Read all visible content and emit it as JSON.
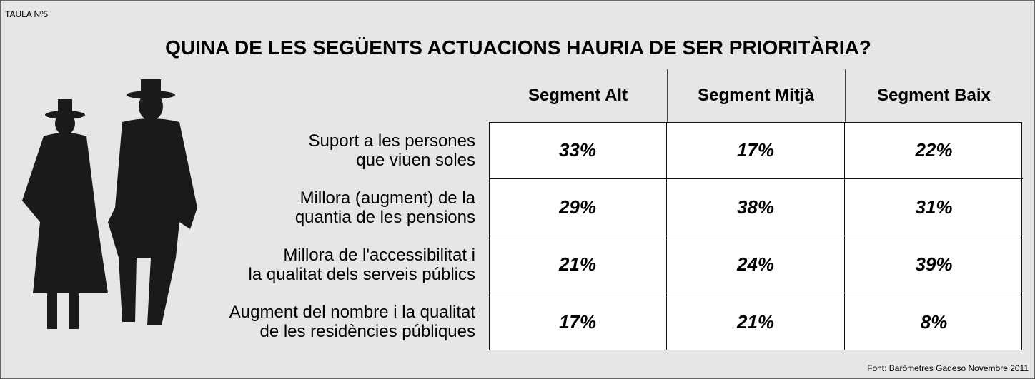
{
  "label": "TAULA Nº5",
  "title": "QUINA DE LES SEGÜENTS ACTUACIONS HAURIA DE SER PRIORITÀRIA?",
  "table": {
    "headers": [
      "Segment Alt",
      "Segment Mitjà",
      "Segment Baix"
    ],
    "rows": [
      {
        "label": [
          "Suport a les persones",
          "que viuen soles"
        ],
        "cells": [
          "33%",
          "17%",
          "22%"
        ]
      },
      {
        "label": [
          "Millora (augment) de la",
          "quantia de les pensions"
        ],
        "cells": [
          "29%",
          "38%",
          "31%"
        ]
      },
      {
        "label": [
          "Millora de l'accessibilitat i",
          "la qualitat dels serveis públics"
        ],
        "cells": [
          "21%",
          "24%",
          "39%"
        ]
      },
      {
        "label": [
          "Augment del nombre i la qualitat",
          "de les residències públiques"
        ],
        "cells": [
          "17%",
          "21%",
          "8%"
        ]
      }
    ]
  },
  "source": "Font: Baròmetres Gadeso Novembre 2011"
}
